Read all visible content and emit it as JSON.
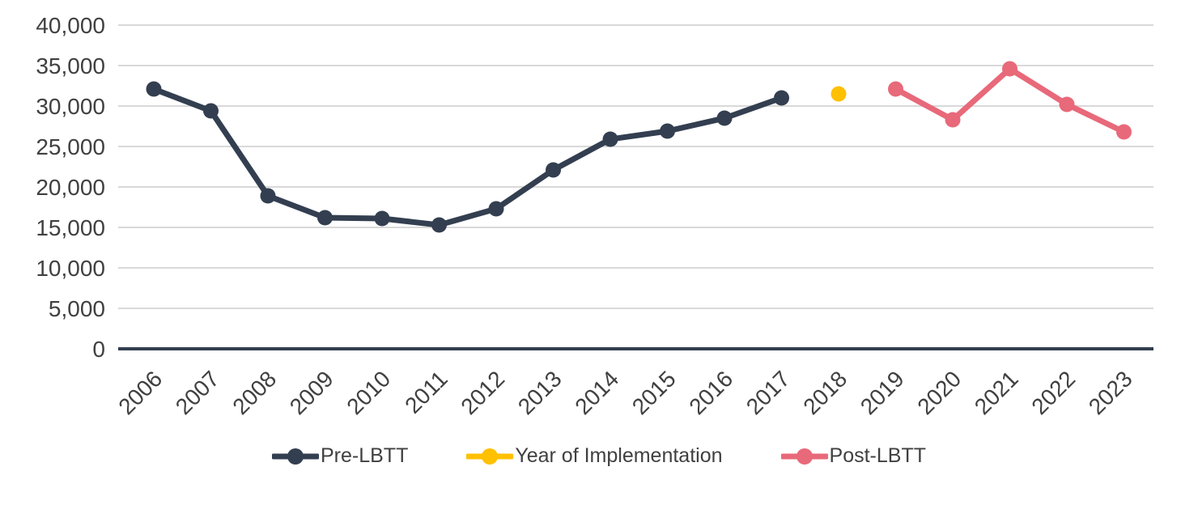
{
  "chart_data": {
    "type": "line",
    "title": "",
    "xlabel": "",
    "ylabel": "",
    "categories": [
      "2006",
      "2007",
      "2008",
      "2009",
      "2010",
      "2011",
      "2012",
      "2013",
      "2014",
      "2015",
      "2016",
      "2017",
      "2018",
      "2019",
      "2020",
      "2021",
      "2022",
      "2023"
    ],
    "series": [
      {
        "id": "pre-lbtt",
        "name": "Pre-LBTT",
        "color": "#333F50",
        "x": [
          "2006",
          "2007",
          "2008",
          "2009",
          "2010",
          "2011",
          "2012",
          "2013",
          "2014",
          "2015",
          "2016",
          "2017"
        ],
        "values": [
          32100,
          29400,
          18900,
          16200,
          16100,
          15300,
          17300,
          22100,
          25900,
          26900,
          28500,
          31000
        ]
      },
      {
        "id": "year-of-implementation",
        "name": "Year of Implementation",
        "color": "#FFC000",
        "x": [
          "2018"
        ],
        "values": [
          31500
        ]
      },
      {
        "id": "post-lbtt",
        "name": "Post-LBTT",
        "color": "#E8697A",
        "x": [
          "2019",
          "2020",
          "2021",
          "2022",
          "2023"
        ],
        "values": [
          32100,
          28300,
          34600,
          30200,
          26800
        ]
      }
    ],
    "ylim": [
      0,
      40000
    ],
    "yticks": [
      {
        "value": 0,
        "label": "0"
      },
      {
        "value": 5000,
        "label": "5,000"
      },
      {
        "value": 10000,
        "label": "10,000"
      },
      {
        "value": 15000,
        "label": "15,000"
      },
      {
        "value": 20000,
        "label": "20,000"
      },
      {
        "value": 25000,
        "label": "25,000"
      },
      {
        "value": 30000,
        "label": "30,000"
      },
      {
        "value": 35000,
        "label": "35,000"
      },
      {
        "value": 40000,
        "label": "40,000"
      }
    ],
    "grid": true,
    "grid_color": "#D9D9D9",
    "axis_color": "#333F50",
    "label_color": "#404040",
    "legend_position": "bottom"
  }
}
